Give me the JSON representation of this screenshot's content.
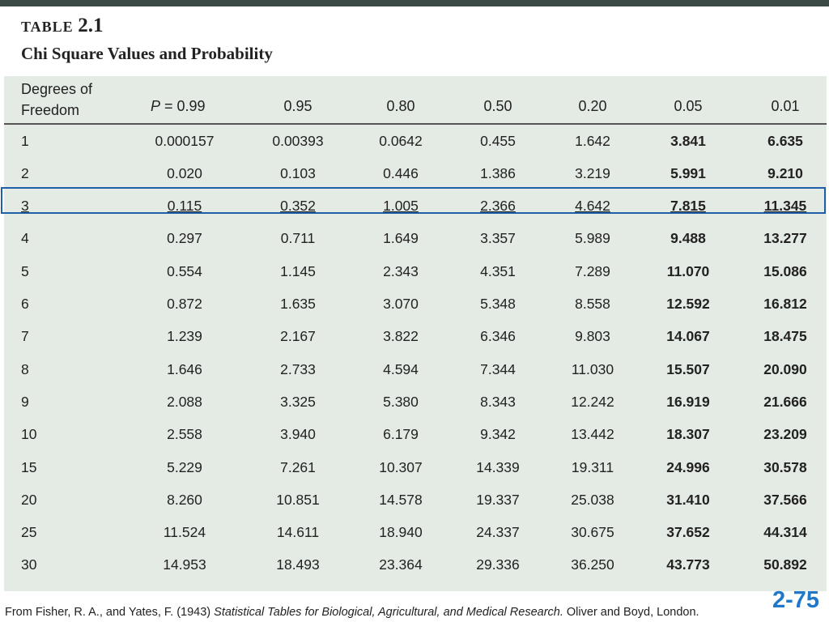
{
  "header": {
    "table_word": "TABLE",
    "table_number": "2.1",
    "title": "Chi Square Values and Probability"
  },
  "columns": {
    "dof_line1": "Degrees of",
    "dof_line2": "Freedom",
    "p_var": "P",
    "p_eq": " = 0.99",
    "probabilities": [
      "0.95",
      "0.80",
      "0.50",
      "0.20",
      "0.05",
      "0.01"
    ]
  },
  "rows": [
    {
      "dof": "1",
      "values": [
        "0.000157",
        "0.00393",
        "0.0642",
        "0.455",
        "1.642",
        "3.841",
        "6.635"
      ]
    },
    {
      "dof": "2",
      "values": [
        "0.020",
        "0.103",
        "0.446",
        "1.386",
        "3.219",
        "5.991",
        "9.210"
      ]
    },
    {
      "dof": "3",
      "values": [
        "0.115",
        "0.352",
        "1.005",
        "2.366",
        "4.642",
        "7.815",
        "11.345"
      ]
    },
    {
      "dof": "4",
      "values": [
        "0.297",
        "0.711",
        "1.649",
        "3.357",
        "5.989",
        "9.488",
        "13.277"
      ]
    },
    {
      "dof": "5",
      "values": [
        "0.554",
        "1.145",
        "2.343",
        "4.351",
        "7.289",
        "11.070",
        "15.086"
      ]
    },
    {
      "dof": "6",
      "values": [
        "0.872",
        "1.635",
        "3.070",
        "5.348",
        "8.558",
        "12.592",
        "16.812"
      ]
    },
    {
      "dof": "7",
      "values": [
        "1.239",
        "2.167",
        "3.822",
        "6.346",
        "9.803",
        "14.067",
        "18.475"
      ]
    },
    {
      "dof": "8",
      "values": [
        "1.646",
        "2.733",
        "4.594",
        "7.344",
        "11.030",
        "15.507",
        "20.090"
      ]
    },
    {
      "dof": "9",
      "values": [
        "2.088",
        "3.325",
        "5.380",
        "8.343",
        "12.242",
        "16.919",
        "21.666"
      ]
    },
    {
      "dof": "10",
      "values": [
        "2.558",
        "3.940",
        "6.179",
        "9.342",
        "13.442",
        "18.307",
        "23.209"
      ]
    },
    {
      "dof": "15",
      "values": [
        "5.229",
        "7.261",
        "10.307",
        "14.339",
        "19.311",
        "24.996",
        "30.578"
      ]
    },
    {
      "dof": "20",
      "values": [
        "8.260",
        "10.851",
        "14.578",
        "19.337",
        "25.038",
        "31.410",
        "37.566"
      ]
    },
    {
      "dof": "25",
      "values": [
        "11.524",
        "14.611",
        "18.940",
        "24.337",
        "30.675",
        "37.652",
        "44.314"
      ]
    },
    {
      "dof": "30",
      "values": [
        "14.953",
        "18.493",
        "23.364",
        "29.336",
        "36.250",
        "43.773",
        "50.892"
      ]
    }
  ],
  "highlighted_row_dof": "3",
  "colors": {
    "highlight": "#1f5fa8",
    "slide_number": "#1f78c8",
    "panel": "#e4eae4"
  },
  "source": {
    "prefix": "From Fisher, R. A., and Yates, F. (1943) ",
    "italic": "Statistical Tables for Biological, Agricultural, and Medical Research.",
    "suffix": " Oliver and Boyd, London."
  },
  "slide_number": "2-75"
}
